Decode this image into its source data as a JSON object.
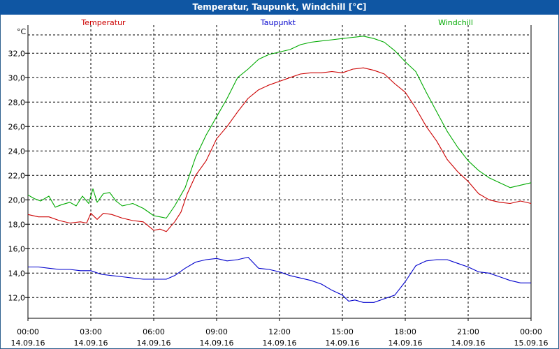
{
  "window": {
    "title": "Temperatur, Taupunkt, Windchill [°C]"
  },
  "chart_data": {
    "type": "line",
    "title": "Temperatur, Taupunkt, Windchill [°C]",
    "ylabel": "°C",
    "xlabel": "",
    "ylim": [
      10.3,
      34.3
    ],
    "xlim": [
      0,
      24
    ],
    "grid": true,
    "legend": "top",
    "yticks": [
      {
        "value": 12,
        "label": "12,0"
      },
      {
        "value": 14,
        "label": "14,0"
      },
      {
        "value": 16,
        "label": "16,0"
      },
      {
        "value": 18,
        "label": "18,0"
      },
      {
        "value": 20,
        "label": "20,0"
      },
      {
        "value": 22,
        "label": "22,0"
      },
      {
        "value": 24,
        "label": "24,0"
      },
      {
        "value": 26,
        "label": "26,0"
      },
      {
        "value": 28,
        "label": "28,0"
      },
      {
        "value": 30,
        "label": "30,0"
      },
      {
        "value": 32,
        "label": "32,0"
      }
    ],
    "xticks": [
      {
        "value": 0,
        "time": "00:00",
        "date": "14.09.16"
      },
      {
        "value": 3,
        "time": "03:00",
        "date": "14.09.16"
      },
      {
        "value": 6,
        "time": "06:00",
        "date": "14.09.16"
      },
      {
        "value": 9,
        "time": "09:00",
        "date": "14.09.16"
      },
      {
        "value": 12,
        "time": "12:00",
        "date": "14.09.16"
      },
      {
        "value": 15,
        "time": "15:00",
        "date": "14.09.16"
      },
      {
        "value": 18,
        "time": "18:00",
        "date": "14.09.16"
      },
      {
        "value": 21,
        "time": "21:00",
        "date": "14.09.16"
      },
      {
        "value": 24,
        "time": "00:00",
        "date": "15.09.16"
      }
    ],
    "series": [
      {
        "name": "Temperatur",
        "color": "#cc0000",
        "x": [
          0,
          0.5,
          1,
          1.5,
          2,
          2.5,
          2.8,
          3,
          3.3,
          3.6,
          4,
          4.5,
          5,
          5.5,
          6,
          6.3,
          6.6,
          7,
          7.3,
          7.6,
          8,
          8.5,
          9,
          9.5,
          10,
          10.5,
          11,
          11.5,
          12,
          12.5,
          13,
          13.5,
          14,
          14.5,
          15,
          15.5,
          16,
          16.5,
          17,
          17.5,
          18,
          18.5,
          19,
          19.5,
          20,
          20.5,
          21,
          21.5,
          22,
          22.5,
          23,
          23.5,
          24
        ],
        "values": [
          18.8,
          18.6,
          18.6,
          18.3,
          18.1,
          18.2,
          18.1,
          18.9,
          18.4,
          18.9,
          18.8,
          18.5,
          18.3,
          18.2,
          17.5,
          17.6,
          17.4,
          18.2,
          19,
          20.5,
          22,
          23.2,
          25,
          26,
          27.2,
          28.3,
          29,
          29.4,
          29.7,
          30,
          30.3,
          30.4,
          30.4,
          30.5,
          30.4,
          30.7,
          30.8,
          30.6,
          30.3,
          29.5,
          28.8,
          27.5,
          26,
          24.8,
          23.3,
          22.3,
          21.5,
          20.5,
          20,
          19.8,
          19.7,
          19.9,
          19.7
        ]
      },
      {
        "name": "Taupunkt",
        "color": "#0000cc",
        "x": [
          0,
          0.5,
          1,
          1.5,
          2,
          2.5,
          3,
          3.5,
          4,
          4.5,
          5,
          5.5,
          6,
          6.3,
          6.6,
          7,
          7.5,
          8,
          8.5,
          9,
          9.5,
          10,
          10.5,
          11,
          11.5,
          12,
          12.5,
          13,
          13.5,
          14,
          14.5,
          15,
          15.3,
          15.6,
          16,
          16.5,
          17,
          17.5,
          18,
          18.5,
          19,
          19.5,
          20,
          20.5,
          21,
          21.5,
          22,
          22.5,
          23,
          23.5,
          24
        ],
        "values": [
          14.5,
          14.5,
          14.4,
          14.3,
          14.3,
          14.2,
          14.2,
          13.9,
          13.8,
          13.7,
          13.6,
          13.5,
          13.5,
          13.5,
          13.5,
          13.8,
          14.4,
          14.9,
          15.1,
          15.2,
          15.0,
          15.1,
          15.3,
          14.4,
          14.3,
          14.1,
          13.8,
          13.6,
          13.4,
          13.1,
          12.6,
          12.2,
          11.7,
          11.8,
          11.6,
          11.6,
          11.9,
          12.2,
          13.3,
          14.6,
          15.0,
          15.1,
          15.1,
          14.8,
          14.5,
          14.1,
          14.0,
          13.7,
          13.4,
          13.2,
          13.2
        ]
      },
      {
        "name": "Windchill",
        "color": "#00aa00",
        "x": [
          0,
          0.3,
          0.6,
          1,
          1.3,
          1.6,
          2,
          2.3,
          2.6,
          2.9,
          3.1,
          3.3,
          3.6,
          3.9,
          4.2,
          4.5,
          5,
          5.5,
          6,
          6.3,
          6.6,
          7,
          7.5,
          8,
          8.5,
          9,
          9.5,
          10,
          10.5,
          11,
          11.5,
          12,
          12.5,
          13,
          13.5,
          14,
          14.5,
          15,
          15.5,
          16,
          16.5,
          17,
          17.5,
          18,
          18.5,
          19,
          19.5,
          20,
          20.5,
          21,
          21.5,
          22,
          22.5,
          23,
          23.5,
          24
        ],
        "values": [
          20.4,
          20.1,
          19.9,
          20.3,
          19.4,
          19.6,
          19.8,
          19.5,
          20.3,
          19.7,
          20.9,
          19.8,
          20.5,
          20.6,
          19.9,
          19.5,
          19.7,
          19.3,
          18.7,
          18.6,
          18.5,
          19.5,
          21,
          23.5,
          25.3,
          26.8,
          28.3,
          30,
          30.7,
          31.5,
          31.9,
          32.1,
          32.3,
          32.7,
          32.9,
          33.0,
          33.1,
          33.2,
          33.3,
          33.4,
          33.2,
          32.9,
          32.2,
          31.3,
          30.5,
          28.8,
          27.2,
          25.6,
          24.3,
          23.2,
          22.4,
          21.8,
          21.4,
          21.0,
          21.2,
          21.4
        ]
      }
    ]
  }
}
